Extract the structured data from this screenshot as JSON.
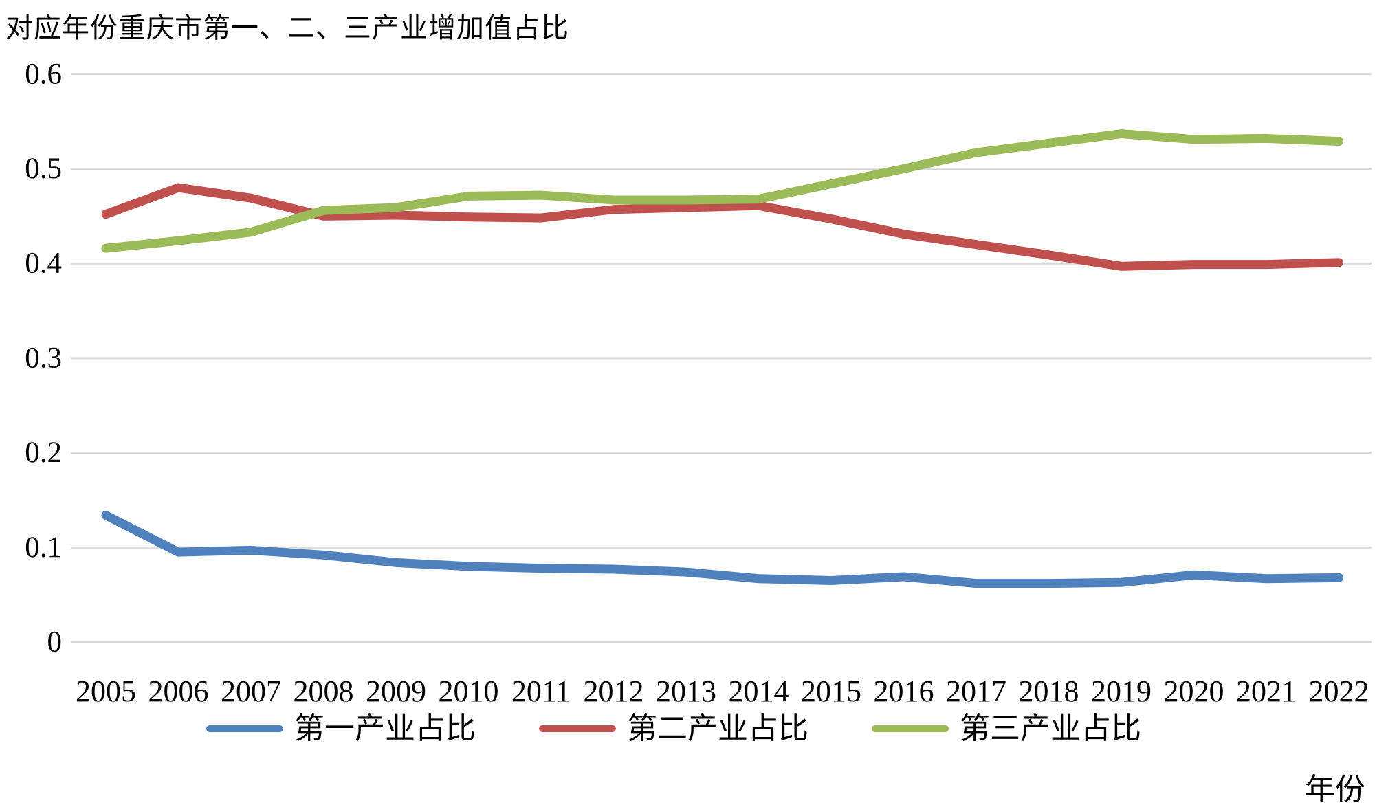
{
  "chart_data": {
    "type": "line",
    "title": "对应年份重庆市第一、二、三产业增加值占比",
    "xlabel": "年份",
    "ylabel": "",
    "ylim": [
      0,
      0.6
    ],
    "yticks": [
      0,
      0.1,
      0.2,
      0.3,
      0.4,
      0.5,
      0.6
    ],
    "ytick_labels": [
      "0",
      "0.1",
      "0.2",
      "0.3",
      "0.4",
      "0.5",
      "0.6"
    ],
    "grid": "horizontal",
    "gridline_color": "#D9D9D9",
    "legend_position": "bottom",
    "categories": [
      "2005",
      "2006",
      "2007",
      "2008",
      "2009",
      "2010",
      "2011",
      "2012",
      "2013",
      "2014",
      "2015",
      "2016",
      "2017",
      "2018",
      "2019",
      "2020",
      "2021",
      "2022"
    ],
    "series": [
      {
        "name": "第一产业占比",
        "color": "#4F81BD",
        "values": [
          0.134,
          0.095,
          0.097,
          0.092,
          0.084,
          0.08,
          0.078,
          0.077,
          0.074,
          0.067,
          0.065,
          0.069,
          0.062,
          0.062,
          0.063,
          0.071,
          0.067,
          0.068
        ]
      },
      {
        "name": "第二产业占比",
        "color": "#C0504D",
        "values": [
          0.452,
          0.48,
          0.469,
          0.45,
          0.451,
          0.449,
          0.448,
          0.457,
          0.459,
          0.461,
          0.447,
          0.431,
          0.42,
          0.409,
          0.397,
          0.399,
          0.399,
          0.401
        ]
      },
      {
        "name": "第三产业占比",
        "color": "#9BBB59",
        "values": [
          0.416,
          0.424,
          0.433,
          0.456,
          0.459,
          0.471,
          0.472,
          0.467,
          0.467,
          0.468,
          0.484,
          0.5,
          0.517,
          0.527,
          0.537,
          0.531,
          0.532,
          0.529
        ]
      }
    ]
  }
}
